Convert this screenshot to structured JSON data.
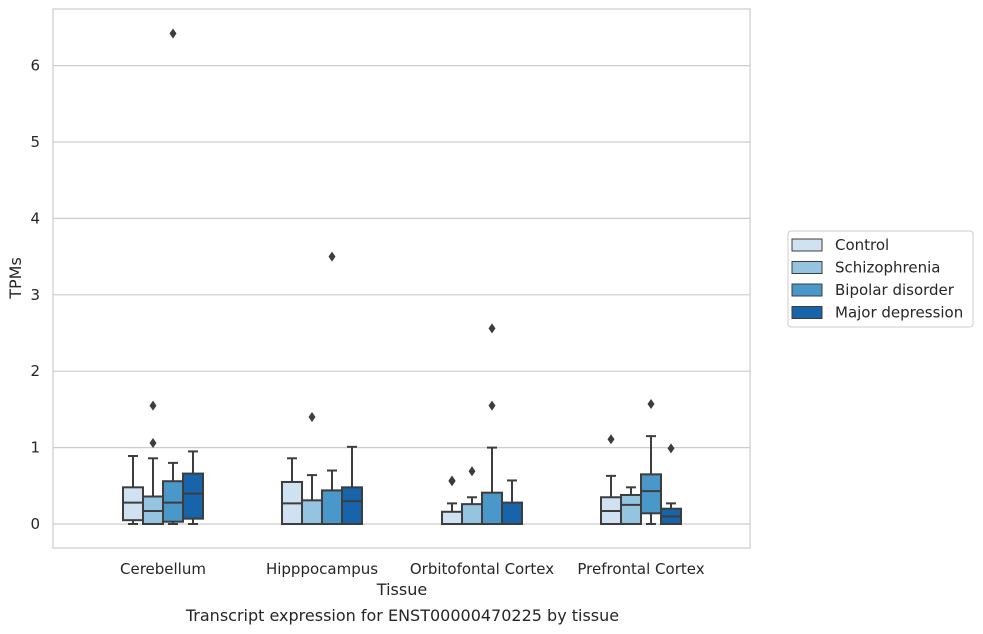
{
  "chart_data": {
    "type": "box",
    "caption": "Transcript expression for ENST00000470225 by tissue",
    "xlabel": "Tissue",
    "ylabel": "TPMs",
    "ylim": [
      -0.3,
      6.75
    ],
    "yticks": [
      0,
      1,
      2,
      3,
      4,
      5,
      6
    ],
    "grid": "horizontal",
    "legend_position": "right",
    "categories": [
      "Cerebellum",
      "Hipppocampus",
      "Orbitofontal Cortex",
      "Prefrontal Cortex"
    ],
    "series": [
      {
        "name": "Control",
        "color": "#d0e1f2",
        "boxes": [
          {
            "low": 0.0,
            "q1": 0.05,
            "median": 0.28,
            "q3": 0.48,
            "high": 0.89,
            "outliers": []
          },
          {
            "low": 0.0,
            "q1": 0.0,
            "median": 0.27,
            "q3": 0.55,
            "high": 0.86,
            "outliers": []
          },
          {
            "low": 0.0,
            "q1": 0.0,
            "median": 0.0,
            "q3": 0.16,
            "high": 0.27,
            "outliers": [
              0.56,
              0.57
            ]
          },
          {
            "low": 0.0,
            "q1": 0.0,
            "median": 0.17,
            "q3": 0.35,
            "high": 0.63,
            "outliers": [
              1.11
            ]
          }
        ]
      },
      {
        "name": "Schizophrenia",
        "color": "#94c4df",
        "boxes": [
          {
            "low": 0.0,
            "q1": 0.0,
            "median": 0.17,
            "q3": 0.36,
            "high": 0.86,
            "outliers": [
              1.06,
              1.55
            ]
          },
          {
            "low": 0.0,
            "q1": 0.0,
            "median": 0.0,
            "q3": 0.31,
            "high": 0.64,
            "outliers": [
              1.4
            ]
          },
          {
            "low": 0.0,
            "q1": 0.0,
            "median": 0.0,
            "q3": 0.26,
            "high": 0.35,
            "outliers": [
              0.69
            ]
          },
          {
            "low": 0.0,
            "q1": 0.0,
            "median": 0.25,
            "q3": 0.38,
            "high": 0.48,
            "outliers": []
          }
        ]
      },
      {
        "name": "Bipolar disorder",
        "color": "#4a98c9",
        "boxes": [
          {
            "low": 0.0,
            "q1": 0.03,
            "median": 0.28,
            "q3": 0.56,
            "high": 0.8,
            "outliers": [
              6.42
            ]
          },
          {
            "low": 0.0,
            "q1": 0.0,
            "median": 0.0,
            "q3": 0.44,
            "high": 0.7,
            "outliers": [
              3.5
            ]
          },
          {
            "low": 0.0,
            "q1": 0.0,
            "median": 0.0,
            "q3": 0.41,
            "high": 1.0,
            "outliers": [
              1.55,
              2.56
            ]
          },
          {
            "low": 0.0,
            "q1": 0.14,
            "median": 0.43,
            "q3": 0.65,
            "high": 1.15,
            "outliers": [
              1.57
            ]
          }
        ]
      },
      {
        "name": "Major depression",
        "color": "#1764ab",
        "boxes": [
          {
            "low": 0.0,
            "q1": 0.07,
            "median": 0.4,
            "q3": 0.66,
            "high": 0.95,
            "outliers": []
          },
          {
            "low": 0.0,
            "q1": 0.0,
            "median": 0.3,
            "q3": 0.48,
            "high": 1.01,
            "outliers": []
          },
          {
            "low": 0.0,
            "q1": 0.0,
            "median": 0.0,
            "q3": 0.28,
            "high": 0.57,
            "outliers": []
          },
          {
            "low": 0.0,
            "q1": 0.0,
            "median": 0.1,
            "q3": 0.2,
            "high": 0.27,
            "outliers": [
              0.99
            ]
          }
        ]
      }
    ]
  }
}
